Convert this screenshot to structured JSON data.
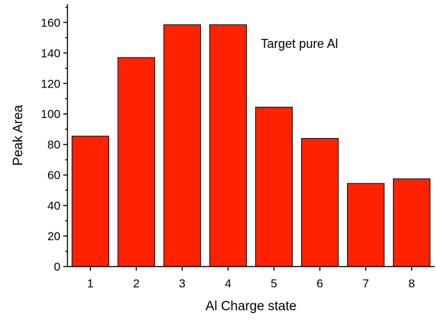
{
  "chart_data": {
    "type": "bar",
    "title": "",
    "xlabel": "Al Charge state",
    "ylabel": "Peak Area",
    "categories": [
      "1",
      "2",
      "3",
      "4",
      "5",
      "6",
      "7",
      "8"
    ],
    "values": [
      85.5,
      137,
      158.5,
      158.5,
      104.5,
      84,
      54.5,
      57.5
    ],
    "ylim": [
      0,
      172
    ],
    "yticks": [
      "0",
      "20",
      "40",
      "60",
      "80",
      "100",
      "120",
      "140",
      "160"
    ],
    "annotation": "Target pure Al",
    "grid": false,
    "legend": "none",
    "bar_color": "#ff2200",
    "bar_edge_color": "#000000"
  }
}
